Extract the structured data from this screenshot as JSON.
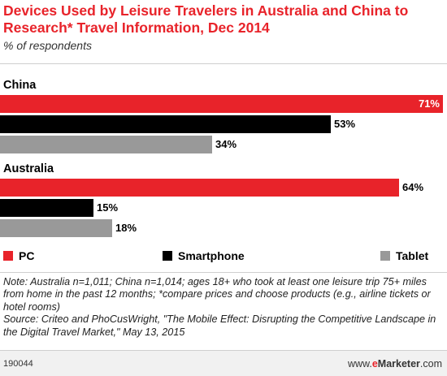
{
  "chart_data": {
    "type": "bar",
    "orientation": "horizontal",
    "title": "Devices Used by Leisure Travelers in Australia and China to Research* Travel Information, Dec 2014",
    "subtitle": "% of respondents",
    "unit": "%",
    "groups": [
      {
        "name": "China",
        "values": [
          71,
          53,
          34
        ]
      },
      {
        "name": "Australia",
        "values": [
          64,
          15,
          18
        ]
      }
    ],
    "series": [
      {
        "name": "PC",
        "color": "#e8232a"
      },
      {
        "name": "Smartphone",
        "color": "#000000"
      },
      {
        "name": "Tablet",
        "color": "#999999"
      }
    ],
    "xlim": [
      0,
      71
    ],
    "grid": false,
    "legend_position": "bottom"
  },
  "note": "Note: Australia n=1,011; China n=1,014; ages 18+ who took at least one leisure trip 75+ miles from home in the past 12 months; *compare prices and choose products (e.g., airline tickets or hotel rooms)",
  "source": "Source: Criteo and PhoCusWright, \"The Mobile Effect: Disrupting the Competitive Landscape in the Digital Travel Market,\" May 13, 2015",
  "footer": {
    "chart_id": "190044",
    "brand_prefix": "www.",
    "brand_e": "e",
    "brand_main": "Marketer",
    "brand_suffix": ".com"
  }
}
